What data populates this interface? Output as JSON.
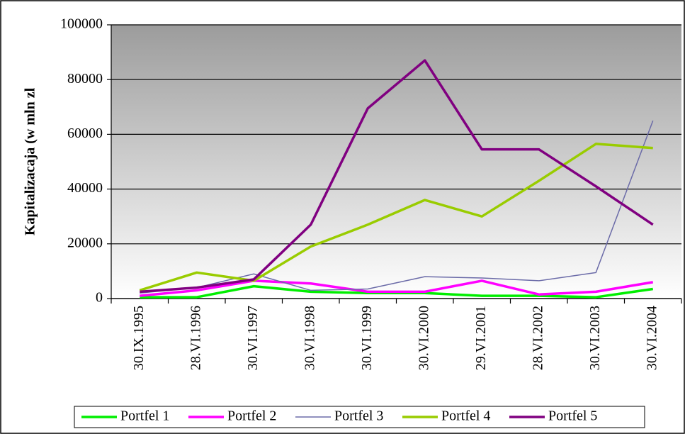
{
  "chart_data": {
    "type": "line",
    "y_label": "Kapitalizacaja (w mln zl",
    "categories": [
      "30.IX.1995",
      "28.VI.1996",
      "30.VI.1997",
      "30.VI.1998",
      "30.VI.1999",
      "30.VI.2000",
      "29.VI.2001",
      "28.VI.2002",
      "30.VI.2003",
      "30.VI.2004"
    ],
    "series": [
      {
        "name": "Portfel 1",
        "color": "#00ee00",
        "values": [
          500,
          500,
          4500,
          2500,
          2000,
          2000,
          1000,
          1000,
          500,
          3500
        ]
      },
      {
        "name": "Portfel 2",
        "color": "#ff00ff",
        "values": [
          1000,
          3000,
          6500,
          5500,
          2500,
          2500,
          6500,
          1500,
          2500,
          6000
        ]
      },
      {
        "name": "Portfel 3",
        "color": "#6b6ba8",
        "values": [
          2000,
          4000,
          9000,
          3000,
          3500,
          8000,
          7500,
          6500,
          9500,
          65000
        ]
      },
      {
        "name": "Portfel 4",
        "color": "#99cc00",
        "values": [
          3000,
          9500,
          6500,
          19000,
          27000,
          36000,
          30000,
          43000,
          56500,
          55000
        ]
      },
      {
        "name": "Portfel 5",
        "color": "#800080",
        "values": [
          2500,
          4000,
          7000,
          27000,
          69500,
          87000,
          54500,
          54500,
          41000,
          27000
        ]
      }
    ],
    "ylim": [
      0,
      100000
    ],
    "yticks": [
      0,
      20000,
      40000,
      60000,
      80000,
      100000
    ],
    "grid": true,
    "legend": "bottom"
  }
}
